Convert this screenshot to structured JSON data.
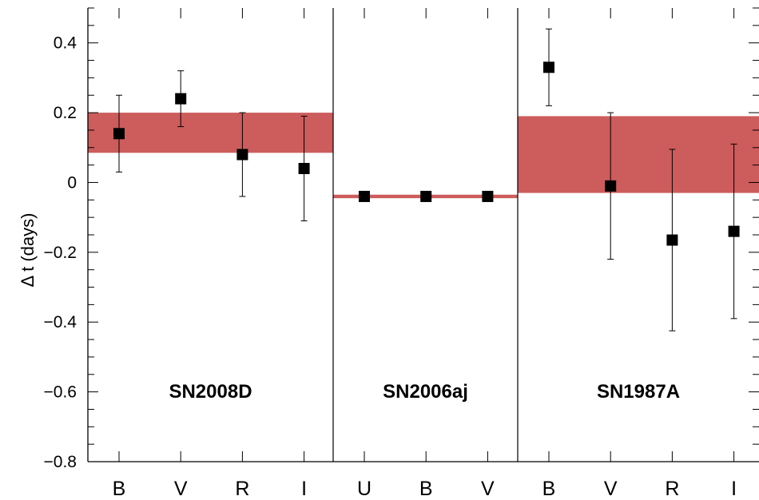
{
  "chart_data": {
    "type": "scatter",
    "ylabel": "Δ t (days)",
    "ylim": [
      -0.8,
      0.5
    ],
    "yticks": [
      {
        "value": 0.4,
        "label": "0.4"
      },
      {
        "value": 0.2,
        "label": "0.2"
      },
      {
        "value": 0,
        "label": "0"
      },
      {
        "value": -0.2,
        "label": "−0.2"
      },
      {
        "value": -0.4,
        "label": "−0.4"
      },
      {
        "value": -0.6,
        "label": "−0.6"
      },
      {
        "value": -0.8,
        "label": "−0.8"
      }
    ],
    "colors": {
      "band": "#cd5c5c",
      "marker": "#000000",
      "axis": "#000000"
    },
    "panels": [
      {
        "name": "SN2008D",
        "band": [
          0.085,
          0.2
        ],
        "points": [
          {
            "band": "B",
            "y": 0.14,
            "err": 0.11
          },
          {
            "band": "V",
            "y": 0.24,
            "err": 0.08
          },
          {
            "band": "R",
            "y": 0.08,
            "err": 0.12
          },
          {
            "band": "I",
            "y": 0.04,
            "err": 0.15
          }
        ]
      },
      {
        "name": "SN2006aj",
        "band": [
          -0.045,
          -0.035
        ],
        "points": [
          {
            "band": "U",
            "y": -0.04,
            "err": 0
          },
          {
            "band": "B",
            "y": -0.04,
            "err": 0
          },
          {
            "band": "V",
            "y": -0.04,
            "err": 0
          }
        ]
      },
      {
        "name": "SN1987A",
        "band": [
          -0.03,
          0.19
        ],
        "points": [
          {
            "band": "B",
            "y": 0.33,
            "err": 0.11
          },
          {
            "band": "V",
            "y": -0.01,
            "err": 0.21
          },
          {
            "band": "R",
            "y": -0.165,
            "err": 0.26
          },
          {
            "band": "I",
            "y": -0.14,
            "err": 0.25
          }
        ]
      }
    ]
  }
}
